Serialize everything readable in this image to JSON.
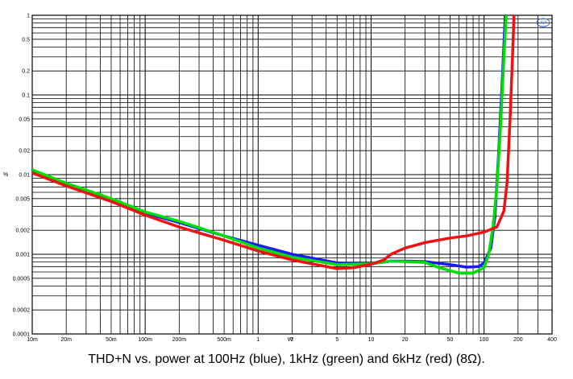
{
  "caption": "THD+N vs. power at 100Hz (blue), 1kHz (green) and 6kHz (red) (8Ω).",
  "chart_data": {
    "type": "line",
    "title": "",
    "xlabel": "W",
    "ylabel": "%",
    "xscale": "log",
    "yscale": "log",
    "xlim": [
      0.01,
      400
    ],
    "ylim": [
      0.0001,
      1
    ],
    "grid": true,
    "logo": "AP",
    "x_ticks": [
      {
        "value": 0.01,
        "label": "10m"
      },
      {
        "value": 0.02,
        "label": "20m"
      },
      {
        "value": 0.05,
        "label": "50m"
      },
      {
        "value": 0.1,
        "label": "100m"
      },
      {
        "value": 0.2,
        "label": "200m"
      },
      {
        "value": 0.5,
        "label": "500m"
      },
      {
        "value": 1,
        "label": "1"
      },
      {
        "value": 2,
        "label": "2"
      },
      {
        "value": 5,
        "label": "5"
      },
      {
        "value": 10,
        "label": "10"
      },
      {
        "value": 20,
        "label": "20"
      },
      {
        "value": 50,
        "label": "50"
      },
      {
        "value": 100,
        "label": "100"
      },
      {
        "value": 200,
        "label": "200"
      },
      {
        "value": 400,
        "label": "400"
      }
    ],
    "y_ticks": [
      {
        "value": 1,
        "label": "1"
      },
      {
        "value": 0.5,
        "label": "0.5"
      },
      {
        "value": 0.2,
        "label": "0.2"
      },
      {
        "value": 0.1,
        "label": "0.1"
      },
      {
        "value": 0.05,
        "label": "0.05"
      },
      {
        "value": 0.02,
        "label": "0.02"
      },
      {
        "value": 0.01,
        "label": "0.01"
      },
      {
        "value": 0.005,
        "label": "0.005"
      },
      {
        "value": 0.002,
        "label": "0.002"
      },
      {
        "value": 0.001,
        "label": "0.001"
      },
      {
        "value": 0.0005,
        "label": "0.0005"
      },
      {
        "value": 0.0002,
        "label": "0.0002"
      },
      {
        "value": 0.0001,
        "label": "0.0001"
      }
    ],
    "series": [
      {
        "color": "#1a1aff",
        "points": [
          [
            0.01,
            0.011
          ],
          [
            0.02,
            0.0075
          ],
          [
            0.05,
            0.0048
          ],
          [
            0.1,
            0.0033
          ],
          [
            0.2,
            0.0025
          ],
          [
            0.5,
            0.0017
          ],
          [
            1,
            0.0013
          ],
          [
            2,
            0.001
          ],
          [
            5,
            0.00078
          ],
          [
            10,
            0.00076
          ],
          [
            15,
            0.00082
          ],
          [
            20,
            0.00082
          ],
          [
            30,
            0.00081
          ],
          [
            50,
            0.00074
          ],
          [
            70,
            0.00069
          ],
          [
            90,
            0.0007
          ],
          [
            100,
            0.00078
          ],
          [
            115,
            0.0012
          ],
          [
            125,
            0.003
          ],
          [
            135,
            0.02
          ],
          [
            145,
            0.15
          ],
          [
            155,
            1.2
          ]
        ]
      },
      {
        "color": "#00dd00",
        "points": [
          [
            0.01,
            0.0115
          ],
          [
            0.02,
            0.0078
          ],
          [
            0.05,
            0.005
          ],
          [
            0.1,
            0.0034
          ],
          [
            0.2,
            0.0026
          ],
          [
            0.5,
            0.0017
          ],
          [
            1,
            0.0012
          ],
          [
            2,
            0.00092
          ],
          [
            5,
            0.00074
          ],
          [
            10,
            0.00076
          ],
          [
            15,
            0.00082
          ],
          [
            20,
            0.00081
          ],
          [
            30,
            0.00079
          ],
          [
            40,
            0.00068
          ],
          [
            60,
            0.00058
          ],
          [
            80,
            0.00058
          ],
          [
            100,
            0.00068
          ],
          [
            110,
            0.001
          ],
          [
            120,
            0.0022
          ],
          [
            130,
            0.007
          ],
          [
            140,
            0.04
          ],
          [
            150,
            0.3
          ],
          [
            158,
            1.2
          ]
        ]
      },
      {
        "color": "#ee1111",
        "points": [
          [
            0.01,
            0.0105
          ],
          [
            0.02,
            0.0072
          ],
          [
            0.05,
            0.0046
          ],
          [
            0.1,
            0.0031
          ],
          [
            0.2,
            0.0022
          ],
          [
            0.5,
            0.0015
          ],
          [
            1,
            0.0011
          ],
          [
            2,
            0.00085
          ],
          [
            5,
            0.00066
          ],
          [
            7,
            0.00068
          ],
          [
            10,
            0.00075
          ],
          [
            13,
            0.00085
          ],
          [
            15,
            0.001
          ],
          [
            20,
            0.0012
          ],
          [
            30,
            0.0014
          ],
          [
            50,
            0.0016
          ],
          [
            70,
            0.0017
          ],
          [
            100,
            0.0019
          ],
          [
            130,
            0.0022
          ],
          [
            150,
            0.0035
          ],
          [
            160,
            0.008
          ],
          [
            170,
            0.05
          ],
          [
            180,
            0.4
          ],
          [
            185,
            1.2
          ]
        ]
      }
    ]
  }
}
